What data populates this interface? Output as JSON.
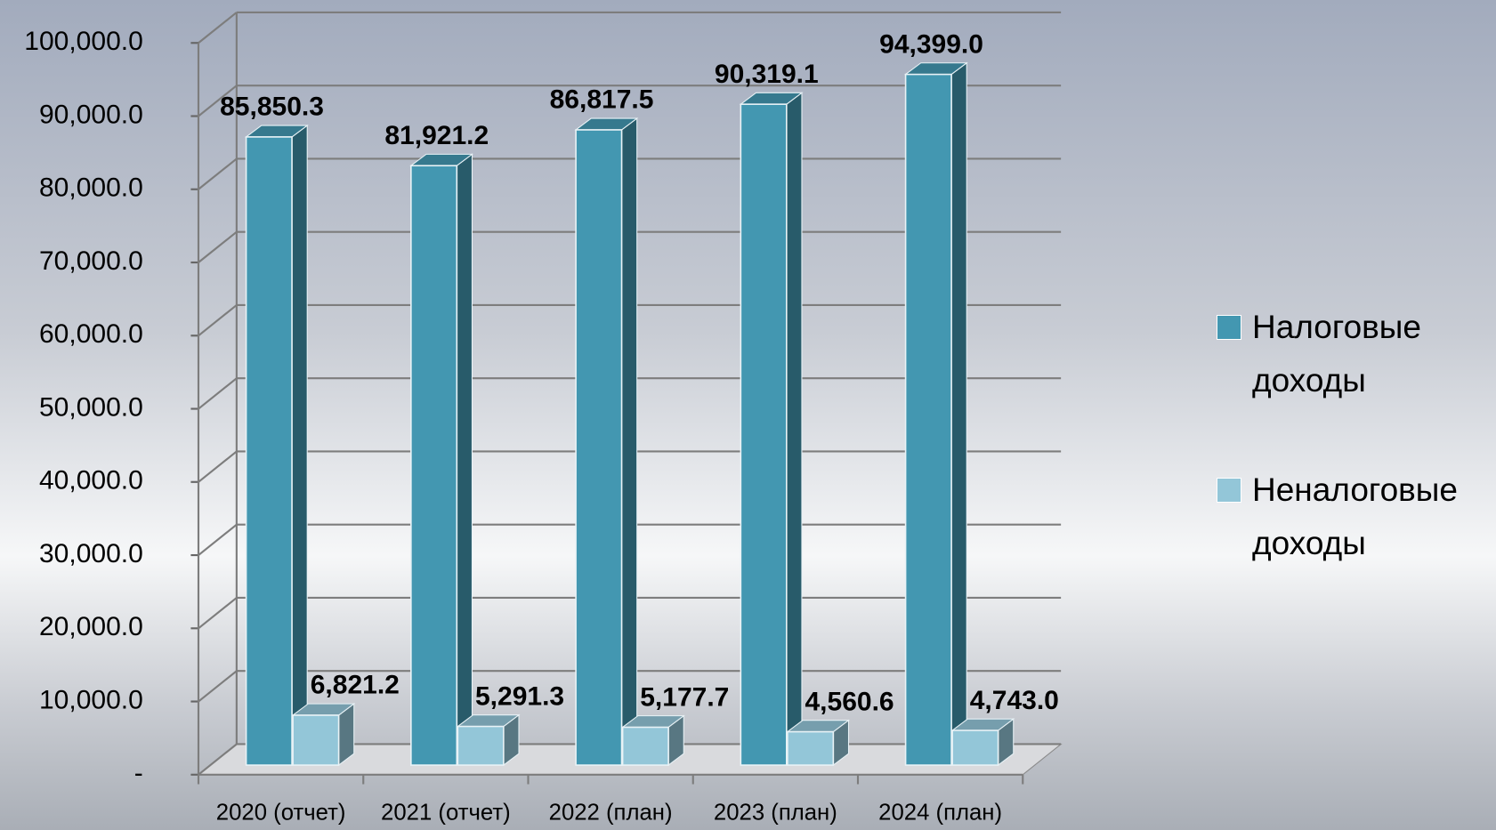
{
  "chart_data": {
    "type": "bar3d",
    "categories": [
      "2020 (отчет)",
      "2021 (отчет)",
      "2022 (план)",
      "2023 (план)",
      "2024 (план)"
    ],
    "series": [
      {
        "name": "Налоговые доходы",
        "color": "#4397b1",
        "values": [
          85850.3,
          81921.2,
          86817.5,
          90319.1,
          94399.0
        ],
        "value_labels": [
          "85,850.3",
          "81,921.2",
          "86,817.5",
          "90,319.1",
          "94,399.0"
        ]
      },
      {
        "name": "Неналоговые доходы",
        "color": "#93c6d8",
        "values": [
          6821.2,
          5291.3,
          5177.7,
          4560.6,
          4743.0
        ],
        "value_labels": [
          "6,821.2",
          "5,291.3",
          "5,177.7",
          "4,560.6",
          "4,743.0"
        ]
      }
    ],
    "ylim": [
      0,
      100000
    ],
    "yticks": [
      {
        "value": 0,
        "label": "-"
      },
      {
        "value": 10000,
        "label": "10,000.0"
      },
      {
        "value": 20000,
        "label": "20,000.0"
      },
      {
        "value": 30000,
        "label": "30,000.0"
      },
      {
        "value": 40000,
        "label": "40,000.0"
      },
      {
        "value": 50000,
        "label": "50,000.0"
      },
      {
        "value": 60000,
        "label": "60,000.0"
      },
      {
        "value": 70000,
        "label": "70,000.0"
      },
      {
        "value": 80000,
        "label": "80,000.0"
      },
      {
        "value": 90000,
        "label": "90,000.0"
      },
      {
        "value": 100000,
        "label": "100,000.0"
      }
    ],
    "grid": true,
    "legend": "right"
  }
}
